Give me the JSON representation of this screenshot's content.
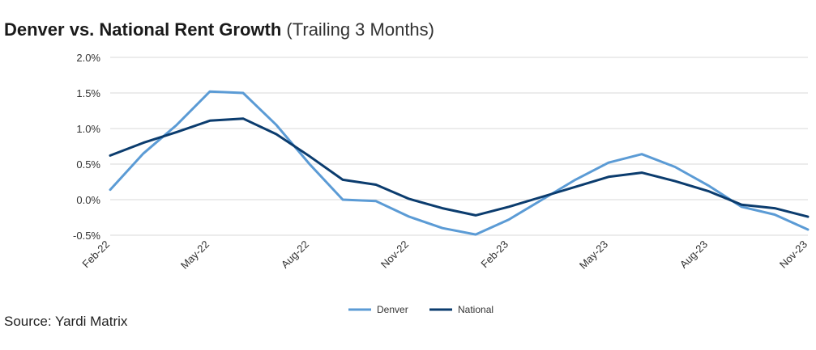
{
  "title": {
    "main": "Denver vs. National Rent Growth",
    "sub": "(Trailing 3 Months)"
  },
  "source": "Source: Yardi Matrix",
  "chart_data": {
    "type": "line",
    "title": "Denver vs. National Rent Growth (Trailing 3 Months)",
    "x": [
      "Feb-22",
      "Mar-22",
      "Apr-22",
      "May-22",
      "Jun-22",
      "Jul-22",
      "Aug-22",
      "Sep-22",
      "Oct-22",
      "Nov-22",
      "Dec-22",
      "Jan-23",
      "Feb-23",
      "Mar-23",
      "Apr-23",
      "May-23",
      "Jun-23",
      "Jul-23",
      "Aug-23",
      "Sep-23",
      "Oct-23",
      "Nov-23"
    ],
    "x_tick_labels": [
      "Feb-22",
      "May-22",
      "Aug-22",
      "Nov-22",
      "Feb-23",
      "May-23",
      "Aug-23",
      "Nov-23"
    ],
    "y_tick_labels": [
      "2.0%",
      "1.5%",
      "1.0%",
      "0.5%",
      "0.0%",
      "-0.5%"
    ],
    "y_ticks": [
      2.0,
      1.5,
      1.0,
      0.5,
      0.0,
      -0.5
    ],
    "ylim": [
      -0.5,
      2.0
    ],
    "grid": true,
    "legend_position": "bottom-center",
    "series": [
      {
        "name": "Denver",
        "color": "#5b9bd5",
        "values": [
          0.14,
          0.65,
          1.05,
          1.52,
          1.5,
          1.05,
          0.5,
          0.0,
          -0.02,
          -0.24,
          -0.4,
          -0.49,
          -0.28,
          0.0,
          0.28,
          0.52,
          0.64,
          0.46,
          0.2,
          -0.1,
          -0.21,
          -0.42
        ]
      },
      {
        "name": "National",
        "color": "#0b3c6e",
        "values": [
          0.62,
          0.8,
          0.95,
          1.11,
          1.14,
          0.92,
          0.61,
          0.28,
          0.21,
          0.01,
          -0.12,
          -0.22,
          -0.1,
          0.04,
          0.18,
          0.32,
          0.38,
          0.26,
          0.12,
          -0.07,
          -0.12,
          -0.24
        ]
      }
    ]
  }
}
